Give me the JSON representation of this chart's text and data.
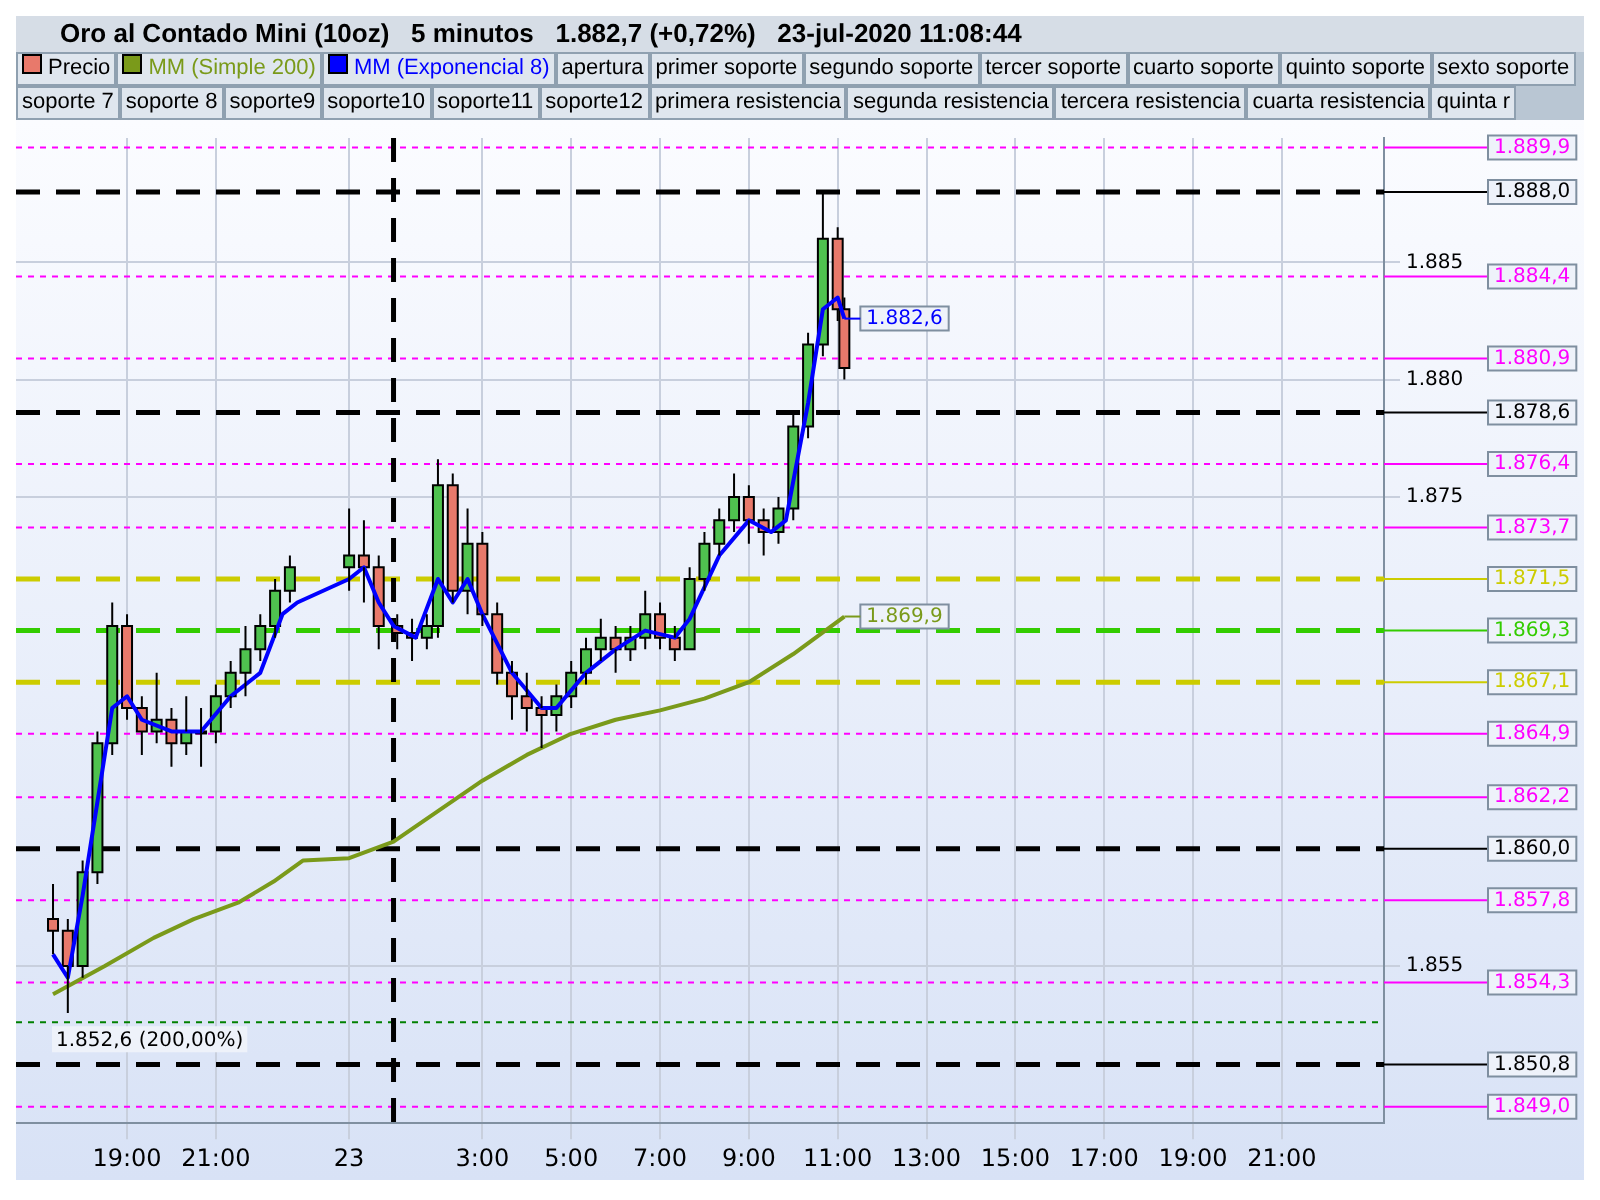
{
  "chart_data": {
    "type": "candlestick",
    "title": "Oro al Contado Mini (10oz)   5 minutos   1.882,7 (+0,72%)   23-jul-2020 11:08:44",
    "series": [
      {
        "name": "Precio",
        "type": "candlestick",
        "x": [
          "2020-07-22T17:20",
          "2020-07-22T17:40",
          "2020-07-22T18:00",
          "2020-07-22T18:20",
          "2020-07-22T18:40",
          "2020-07-22T19:00",
          "2020-07-22T19:20",
          "2020-07-22T19:40",
          "2020-07-22T20:00",
          "2020-07-22T20:20",
          "2020-07-22T20:40",
          "2020-07-22T21:00",
          "2020-07-22T21:20",
          "2020-07-22T21:40",
          "2020-07-22T22:00",
          "2020-07-22T22:20",
          "2020-07-22T22:40",
          "2020-07-23T00:00",
          "2020-07-23T00:20",
          "2020-07-23T00:40",
          "2020-07-23T01:05",
          "2020-07-23T01:25",
          "2020-07-23T01:45",
          "2020-07-23T02:00",
          "2020-07-23T02:20",
          "2020-07-23T02:40",
          "2020-07-23T03:00",
          "2020-07-23T03:20",
          "2020-07-23T03:40",
          "2020-07-23T04:00",
          "2020-07-23T04:20",
          "2020-07-23T04:40",
          "2020-07-23T05:00",
          "2020-07-23T05:20",
          "2020-07-23T05:40",
          "2020-07-23T06:00",
          "2020-07-23T06:20",
          "2020-07-23T06:40",
          "2020-07-23T07:00",
          "2020-07-23T07:20",
          "2020-07-23T07:40",
          "2020-07-23T08:00",
          "2020-07-23T08:20",
          "2020-07-23T08:40",
          "2020-07-23T09:00",
          "2020-07-23T09:20",
          "2020-07-23T09:40",
          "2020-07-23T10:00",
          "2020-07-23T10:20",
          "2020-07-23T10:40",
          "2020-07-23T11:00",
          "2020-07-23T11:09"
        ],
        "ohlc": [
          [
            1857,
            1858.5,
            1855.5,
            1856.5
          ],
          [
            1856.5,
            1857,
            1853,
            1855
          ],
          [
            1855,
            1859.5,
            1854.5,
            1859
          ],
          [
            1859,
            1865,
            1858.5,
            1864.5
          ],
          [
            1864.5,
            1870.5,
            1864,
            1869.5
          ],
          [
            1869.5,
            1870,
            1865.5,
            1866
          ],
          [
            1866,
            1866.5,
            1864,
            1865
          ],
          [
            1865,
            1867.5,
            1864.5,
            1865.5
          ],
          [
            1865.5,
            1866,
            1863.5,
            1864.5
          ],
          [
            1864.5,
            1866.5,
            1864,
            1865
          ],
          [
            1865,
            1866,
            1863.5,
            1865
          ],
          [
            1865,
            1867,
            1864.5,
            1866.5
          ],
          [
            1866.5,
            1868,
            1866,
            1867.5
          ],
          [
            1867.5,
            1869.5,
            1866.5,
            1868.5
          ],
          [
            1868.5,
            1870,
            1868,
            1869.5
          ],
          [
            1869.5,
            1871.5,
            1869,
            1871
          ],
          [
            1871,
            1872.5,
            1870.5,
            1872
          ],
          [
            1872,
            1874.5,
            1871,
            1872.5
          ],
          [
            1872.5,
            1874,
            1870.5,
            1872
          ],
          [
            1872,
            1872.5,
            1868.5,
            1869.5
          ],
          [
            1869.5,
            1870,
            1868.5,
            1869.2
          ],
          [
            1869.2,
            1869.8,
            1868,
            1869
          ],
          [
            1869,
            1870,
            1868.5,
            1869.5
          ],
          [
            1869.5,
            1876.6,
            1869,
            1875.5
          ],
          [
            1875.5,
            1876,
            1870.5,
            1871
          ],
          [
            1871,
            1874.5,
            1870,
            1873
          ],
          [
            1873,
            1873.5,
            1869.5,
            1870
          ],
          [
            1870,
            1870.5,
            1867,
            1867.5
          ],
          [
            1867.5,
            1868,
            1865.5,
            1866.5
          ],
          [
            1866.5,
            1867.5,
            1865,
            1866
          ],
          [
            1866,
            1866.5,
            1864.3,
            1865.7
          ],
          [
            1865.7,
            1867,
            1865,
            1866.5
          ],
          [
            1866.5,
            1868,
            1866,
            1867.5
          ],
          [
            1867.5,
            1869,
            1867,
            1868.5
          ],
          [
            1868.5,
            1869.8,
            1868,
            1869
          ],
          [
            1869,
            1869.5,
            1867.5,
            1868.5
          ],
          [
            1868.5,
            1869.5,
            1868,
            1869
          ],
          [
            1869,
            1871,
            1868.5,
            1870
          ],
          [
            1870,
            1870.5,
            1868.5,
            1869
          ],
          [
            1869,
            1869.5,
            1868,
            1868.5
          ],
          [
            1868.5,
            1872,
            1868.5,
            1871.5
          ],
          [
            1871.5,
            1873.5,
            1871,
            1873
          ],
          [
            1873,
            1874.5,
            1872.5,
            1874
          ],
          [
            1874,
            1876,
            1873.5,
            1875
          ],
          [
            1875,
            1875.5,
            1873,
            1874
          ],
          [
            1874,
            1874.5,
            1872.5,
            1873.5
          ],
          [
            1873.5,
            1875,
            1873,
            1874.5
          ],
          [
            1874.5,
            1878.5,
            1874,
            1878
          ],
          [
            1878,
            1882,
            1877.5,
            1881.5
          ],
          [
            1881.5,
            1888,
            1881,
            1886
          ],
          [
            1886,
            1886.5,
            1882.5,
            1883
          ],
          [
            1883,
            1883.5,
            1880,
            1880.5
          ]
        ],
        "colors": [
          "#e8796b",
          "#e8796b",
          "#4fc24f",
          "#4fc24f",
          "#4fc24f",
          "#e8796b",
          "#e8796b",
          "#4fc24f",
          "#e8796b",
          "#4fc24f",
          "#4fc24f",
          "#4fc24f",
          "#4fc24f",
          "#4fc24f",
          "#4fc24f",
          "#4fc24f",
          "#4fc24f",
          "#4fc24f",
          "#e8796b",
          "#e8796b",
          "#e8796b",
          "#e8796b",
          "#4fc24f",
          "#4fc24f",
          "#e8796b",
          "#4fc24f",
          "#e8796b",
          "#e8796b",
          "#e8796b",
          "#e8796b",
          "#e8796b",
          "#4fc24f",
          "#4fc24f",
          "#4fc24f",
          "#4fc24f",
          "#e8796b",
          "#4fc24f",
          "#4fc24f",
          "#e8796b",
          "#e8796b",
          "#4fc24f",
          "#4fc24f",
          "#4fc24f",
          "#4fc24f",
          "#e8796b",
          "#e8796b",
          "#4fc24f",
          "#4fc24f",
          "#4fc24f",
          "#4fc24f",
          "#e8796b",
          "#e8796b"
        ]
      },
      {
        "name": "MM (Simple 200)",
        "type": "line",
        "color": "#7a9a1a",
        "x": [
          "2020-07-22T17:20",
          "2020-07-22T18:30",
          "2020-07-22T19:36",
          "2020-07-22T20:30",
          "2020-07-22T21:30",
          "2020-07-22T22:18",
          "2020-07-22T22:58",
          "2020-07-23T00:00",
          "2020-07-23T01:00",
          "2020-07-23T02:00",
          "2020-07-23T03:00",
          "2020-07-23T04:00",
          "2020-07-23T05:00",
          "2020-07-23T06:00",
          "2020-07-23T07:00",
          "2020-07-23T08:00",
          "2020-07-23T09:00",
          "2020-07-23T10:00",
          "2020-07-23T11:09"
        ],
        "values": [
          1853.8,
          1855,
          1856.2,
          1857,
          1857.7,
          1858.6,
          1859.5,
          1859.6,
          1860.3,
          1861.6,
          1862.9,
          1864,
          1864.9,
          1865.5,
          1865.9,
          1866.4,
          1867.1,
          1868.3,
          1869.9
        ]
      },
      {
        "name": "MM (Exponencial 8)",
        "type": "line",
        "color": "#0000ff",
        "x": [
          "2020-07-22T17:20",
          "2020-07-22T17:40",
          "2020-07-22T18:00",
          "2020-07-22T18:20",
          "2020-07-22T18:40",
          "2020-07-22T19:00",
          "2020-07-22T19:20",
          "2020-07-22T20:00",
          "2020-07-22T20:40",
          "2020-07-22T21:20",
          "2020-07-22T22:00",
          "2020-07-22T22:30",
          "2020-07-22T22:50",
          "2020-07-23T00:00",
          "2020-07-23T00:20",
          "2020-07-23T00:40",
          "2020-07-23T01:00",
          "2020-07-23T01:30",
          "2020-07-23T02:00",
          "2020-07-23T02:20",
          "2020-07-23T02:40",
          "2020-07-23T03:00",
          "2020-07-23T03:40",
          "2020-07-23T04:20",
          "2020-07-23T04:40",
          "2020-07-23T05:20",
          "2020-07-23T06:00",
          "2020-07-23T06:40",
          "2020-07-23T07:20",
          "2020-07-23T07:40",
          "2020-07-23T08:20",
          "2020-07-23T09:00",
          "2020-07-23T09:30",
          "2020-07-23T09:50",
          "2020-07-23T10:20",
          "2020-07-23T10:40",
          "2020-07-23T11:00",
          "2020-07-23T11:09"
        ],
        "values": [
          1855.5,
          1854.5,
          1858,
          1862,
          1866,
          1866.5,
          1865.5,
          1865,
          1865,
          1866.5,
          1867.5,
          1870,
          1870.5,
          1871.5,
          1872,
          1870.5,
          1869.5,
          1869,
          1871.5,
          1870.5,
          1871.5,
          1870,
          1867.5,
          1866,
          1866,
          1867.5,
          1868.5,
          1869.3,
          1869,
          1869.8,
          1872.5,
          1874,
          1873.5,
          1874,
          1879,
          1883,
          1883.5,
          1882.6
        ]
      }
    ],
    "ref_lines": [
      {
        "axis": "y",
        "value": 1869.3,
        "label": "1.869,3",
        "color": "#33cc00",
        "line_style": "dashed"
      },
      {
        "axis": "y",
        "value": 1864.9,
        "label": "1.864,9",
        "color": "#ff00ff",
        "line_style": "dotted"
      },
      {
        "axis": "y",
        "value": 1862.2,
        "label": "1.862,2",
        "color": "#ff00ff",
        "line_style": "dotted"
      },
      {
        "axis": "y",
        "value": 1860.0,
        "label": "1.860,0",
        "color": "#000000",
        "line_style": "dashed"
      },
      {
        "axis": "y",
        "value": 1857.8,
        "label": "1.857,8",
        "color": "#ff00ff",
        "line_style": "dotted"
      },
      {
        "axis": "y",
        "value": 1854.3,
        "label": "1.854,3",
        "color": "#ff00ff",
        "line_style": "dotted"
      },
      {
        "axis": "y",
        "value": 1850.8,
        "label": "1.850,8",
        "color": "#000000",
        "line_style": "dashed"
      },
      {
        "axis": "y",
        "value": 1849.0,
        "label": "1.849,0",
        "color": "#ff00ff",
        "line_style": "dotted"
      },
      {
        "axis": "y",
        "value": 1873.7,
        "label": "1.873,7",
        "color": "#ff00ff",
        "line_style": "dotted"
      },
      {
        "axis": "y",
        "value": 1876.4,
        "label": "1.876,4",
        "color": "#ff00ff",
        "line_style": "dotted"
      },
      {
        "axis": "y",
        "value": 1878.6,
        "label": "1.878,6",
        "color": "#000000",
        "line_style": "dashed"
      },
      {
        "axis": "y",
        "value": 1880.9,
        "label": "1.880,9",
        "color": "#ff00ff",
        "line_style": "dotted"
      },
      {
        "axis": "y",
        "value": 1884.4,
        "label": "1.884,4",
        "color": "#ff00ff",
        "line_style": "dotted"
      },
      {
        "axis": "y",
        "value": 1888.0,
        "label": "1.888,0",
        "color": "#000000",
        "line_style": "dashed"
      },
      {
        "axis": "y",
        "value": 1889.9,
        "label": "1.889,9",
        "color": "#ff00ff",
        "line_style": "dotted"
      },
      {
        "axis": "y",
        "value": 1871.5,
        "label": "1.871,5",
        "color": "#cccc00",
        "line_style": "dashed"
      },
      {
        "axis": "y",
        "value": 1867.1,
        "label": "1.867,1",
        "color": "#cccc00",
        "line_style": "dashed"
      },
      {
        "axis": "y",
        "value": 1852.6,
        "label": null,
        "color": "#008000",
        "line_style": "dotted"
      },
      {
        "axis": "x",
        "value": "2020-07-23T01:00",
        "label": null,
        "color": "#000000",
        "line_style": "dashed"
      }
    ],
    "annotations": [
      "apertura",
      "primer soporte",
      "segundo soporte",
      "tercer soporte",
      "cuarto soporte",
      "quinto soporte",
      "sexto soporte",
      "soporte 7",
      "soporte 8",
      "soporte9",
      "soporte10",
      "soporte11",
      "soporte12",
      "primera resistencia",
      "segunda resistencia",
      "tercera resistencia",
      "cuarta resistencia",
      "quinta r",
      {
        "text": "1.852,6 (200,00%)",
        "x": "2020-07-22T17:24",
        "y": 1852.6
      },
      {
        "text": "1.882,6",
        "x": "2020-07-23T11:09",
        "y": 1882.6
      },
      {
        "text": "1.869,9",
        "x": "2020-07-23T11:09",
        "y": 1869.9
      }
    ],
    "xlim": [
      "2020-07-22T16:30",
      "2020-07-23T23:18"
    ],
    "xticks": [
      {
        "value": "2020-07-22T19:00",
        "label": "19:00"
      },
      {
        "value": "2020-07-22T21:00",
        "label": "21:00"
      },
      {
        "value": "2020-07-23T00:00",
        "label": "23"
      },
      {
        "value": "2020-07-23T03:00",
        "label": "3:00"
      },
      {
        "value": "2020-07-23T05:00",
        "label": "5:00"
      },
      {
        "value": "2020-07-23T07:00",
        "label": "7:00"
      },
      {
        "value": "2020-07-23T09:00",
        "label": "9:00"
      },
      {
        "value": "2020-07-23T11:00",
        "label": "11:00"
      },
      {
        "value": "2020-07-23T13:00",
        "label": "13:00"
      },
      {
        "value": "2020-07-23T15:00",
        "label": "15:00"
      },
      {
        "value": "2020-07-23T17:00",
        "label": "17:00"
      },
      {
        "value": "2020-07-23T19:00",
        "label": "19:00"
      },
      {
        "value": "2020-07-23T21:00",
        "label": "21:00"
      }
    ],
    "ylim": [
      1848.3,
      1890.3
    ],
    "yticks": [
      {
        "value": 1855,
        "label": "1.855"
      },
      {
        "value": 1875,
        "label": "1.875"
      },
      {
        "value": 1880,
        "label": "1.880"
      },
      {
        "value": 1885,
        "label": "1.885"
      }
    ],
    "grid": true,
    "legend": "top"
  }
}
